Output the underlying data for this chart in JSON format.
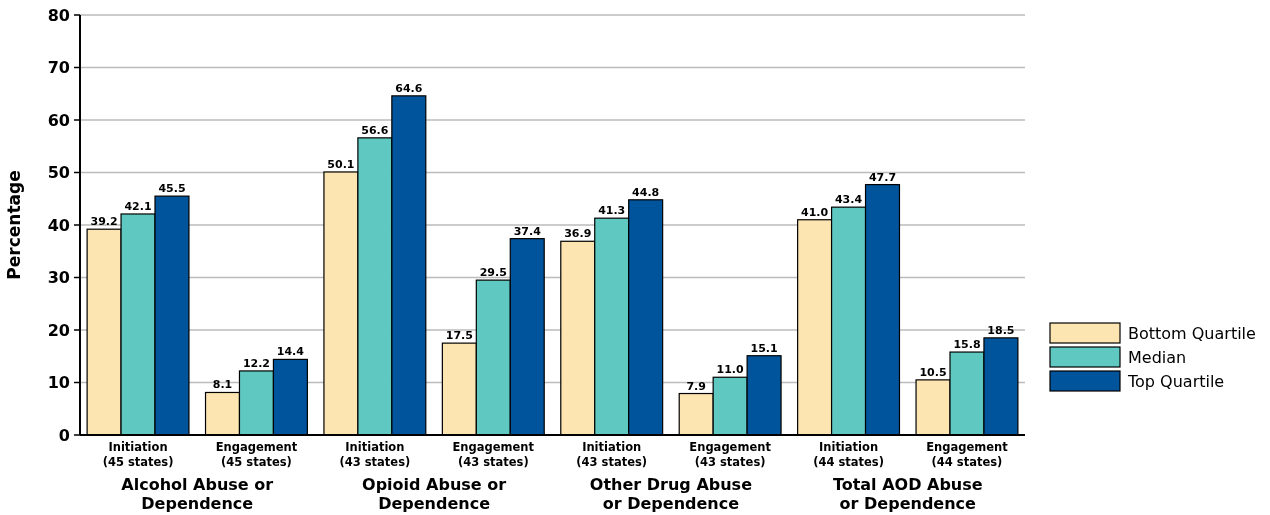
{
  "chart_data": {
    "type": "bar",
    "ylabel": "Percentage",
    "categories": [
      "Initiation (45 states)",
      "Engagement (45 states)",
      "Initiation (43 states)",
      "Engagement (43 states)",
      "Initiation (43 states)",
      "Engagement (43 states)",
      "Initiation (44 states)",
      "Engagement (44 states)"
    ],
    "series": [
      {
        "name": "Bottom Quartile",
        "color": "#fde5b2",
        "values": [
          39.2,
          8.1,
          50.1,
          17.5,
          36.9,
          7.9,
          41.0,
          10.5
        ]
      },
      {
        "name": "Median",
        "color": "#5fc9c1",
        "values": [
          42.1,
          12.2,
          56.6,
          29.5,
          41.3,
          11.0,
          43.4,
          15.8
        ]
      },
      {
        "name": "Top Quartile",
        "color": "#00549c",
        "values": [
          45.5,
          14.4,
          64.6,
          37.4,
          44.8,
          15.1,
          47.7,
          18.5
        ]
      }
    ],
    "value_labels": [
      [
        "39.2",
        "8.1",
        "50.1",
        "17.5",
        "36.9",
        "7.9",
        "41.0",
        "10.5"
      ],
      [
        "42.1",
        "12.2",
        "56.6",
        "29.5",
        "41.3",
        "11.0",
        "43.4",
        "15.8"
      ],
      [
        "45.5",
        "14.4",
        "64.6",
        "37.4",
        "44.8",
        "15.1",
        "47.7",
        "18.5"
      ]
    ],
    "annotations": [
      "Alcohol Abuse or Dependence",
      "Opioid Abuse or Dependence",
      "Other Drug Abuse or Dependence",
      "Total AOD Abuse or Dependence"
    ],
    "ylim": [
      0,
      80
    ],
    "yticks": [
      0,
      10,
      20,
      30,
      40,
      50,
      60,
      70,
      80
    ],
    "grid": "y",
    "legend": "right"
  }
}
